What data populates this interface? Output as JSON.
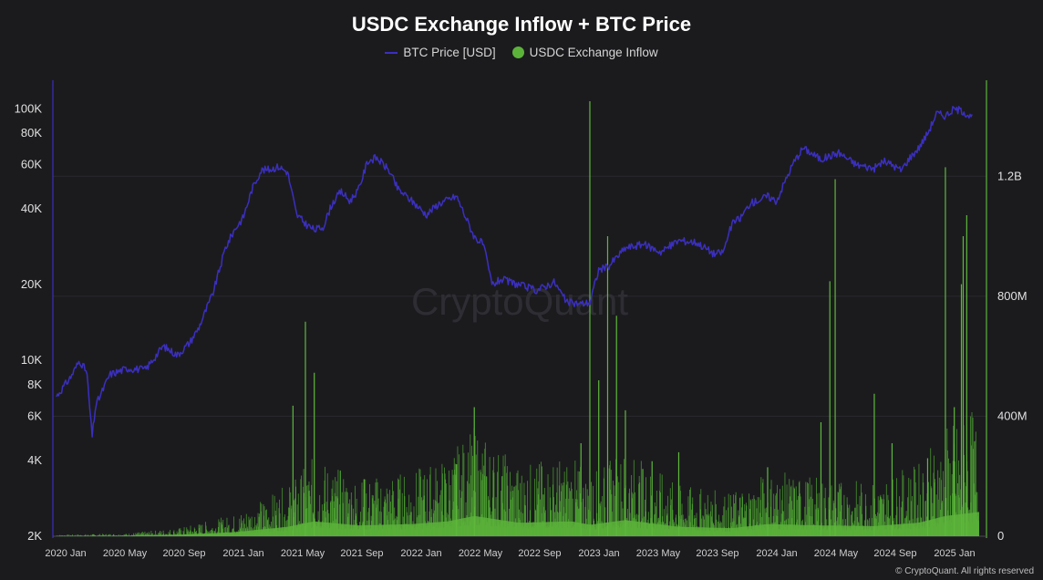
{
  "chart_data": {
    "type": "line",
    "title": "USDC Exchange Inflow + BTC Price",
    "watermark": "CryptoQuant",
    "copyright": "© CryptoQuant. All rights reserved",
    "legend": [
      {
        "name": "BTC Price [USD]",
        "color": "#3b2fbf",
        "marker": "line"
      },
      {
        "name": "USDC Exchange Inflow",
        "color": "#5cb33a",
        "marker": "dot"
      }
    ],
    "x_ticks": [
      "2020 Jan",
      "2020 May",
      "2020 Sep",
      "2021 Jan",
      "2021 May",
      "2021 Sep",
      "2022 Jan",
      "2022 May",
      "2022 Sep",
      "2023 Jan",
      "2023 May",
      "2023 Sep",
      "2024 Jan",
      "2024 May",
      "2024 Sep",
      "2025 Jan"
    ],
    "left_axis": {
      "label": "BTC Price",
      "scale": "log",
      "range": [
        2000,
        130000
      ],
      "ticks": [
        {
          "v": 2000,
          "t": "2K"
        },
        {
          "v": 4000,
          "t": "4K"
        },
        {
          "v": 6000,
          "t": "6K"
        },
        {
          "v": 8000,
          "t": "8K"
        },
        {
          "v": 10000,
          "t": "10K"
        },
        {
          "v": 20000,
          "t": "20K"
        },
        {
          "v": 40000,
          "t": "40K"
        },
        {
          "v": 60000,
          "t": "60K"
        },
        {
          "v": 80000,
          "t": "80K"
        },
        {
          "v": 100000,
          "t": "100K"
        }
      ]
    },
    "right_axis": {
      "label": "USDC Exchange Inflow",
      "scale": "linear",
      "range": [
        0,
        1520000000
      ],
      "ticks": [
        {
          "v": 0,
          "t": "0"
        },
        {
          "v": 400000000,
          "t": "400M"
        },
        {
          "v": 800000000,
          "t": "800M"
        },
        {
          "v": 1200000000,
          "t": "1.2B"
        }
      ]
    },
    "x_range": [
      2020.0,
      2025.19
    ],
    "btc_series": {
      "name": "BTC Price [USD]",
      "x": [
        2020.0,
        2020.08,
        2020.13,
        2020.17,
        2020.2,
        2020.22,
        2020.3,
        2020.4,
        2020.5,
        2020.6,
        2020.68,
        2020.75,
        2020.8,
        2020.88,
        2020.95,
        2021.0,
        2021.05,
        2021.1,
        2021.15,
        2021.2,
        2021.25,
        2021.3,
        2021.35,
        2021.4,
        2021.45,
        2021.5,
        2021.55,
        2021.6,
        2021.65,
        2021.7,
        2021.75,
        2021.8,
        2021.87,
        2021.92,
        2022.0,
        2022.08,
        2022.15,
        2022.25,
        2022.35,
        2022.4,
        2022.45,
        2022.5,
        2022.6,
        2022.7,
        2022.8,
        2022.87,
        2022.95,
        2023.0,
        2023.05,
        2023.1,
        2023.2,
        2023.3,
        2023.4,
        2023.5,
        2023.6,
        2023.7,
        2023.75,
        2023.8,
        2023.85,
        2023.9,
        2024.0,
        2024.05,
        2024.1,
        2024.15,
        2024.2,
        2024.3,
        2024.4,
        2024.5,
        2024.6,
        2024.65,
        2024.7,
        2024.75,
        2024.8,
        2024.85,
        2024.9,
        2024.95,
        2025.0,
        2025.05,
        2025.1,
        2025.15
      ],
      "values": [
        7200,
        8600,
        10000,
        9000,
        5000,
        6600,
        8800,
        9300,
        9200,
        11400,
        10500,
        11800,
        13500,
        18500,
        28000,
        33000,
        37000,
        48000,
        57000,
        57500,
        59000,
        56000,
        38000,
        35000,
        33000,
        34000,
        42000,
        47000,
        43000,
        48000,
        62000,
        64000,
        57000,
        48000,
        43000,
        38000,
        42000,
        45000,
        31000,
        29000,
        20000,
        21000,
        20000,
        19000,
        20500,
        17000,
        16800,
        17000,
        23000,
        23500,
        28000,
        29000,
        27000,
        30000,
        29500,
        26500,
        27000,
        35000,
        37000,
        42000,
        45000,
        43000,
        52000,
        62000,
        70000,
        63000,
        67000,
        60000,
        58000,
        62000,
        60000,
        57000,
        64000,
        70000,
        80000,
        96000,
        94000,
        100000,
        98000,
        92000
      ]
    },
    "inflow_series": {
      "name": "USDC Exchange Inflow",
      "baseline": [
        [
          2020.0,
          2000000
        ],
        [
          2020.4,
          4000000
        ],
        [
          2020.7,
          12000000
        ],
        [
          2021.0,
          30000000
        ],
        [
          2021.3,
          70000000
        ],
        [
          2021.45,
          110000000
        ],
        [
          2021.7,
          80000000
        ],
        [
          2022.0,
          90000000
        ],
        [
          2022.2,
          110000000
        ],
        [
          2022.35,
          150000000
        ],
        [
          2022.6,
          100000000
        ],
        [
          2022.9,
          110000000
        ],
        [
          2023.0,
          85000000
        ],
        [
          2023.2,
          120000000
        ],
        [
          2023.5,
          70000000
        ],
        [
          2023.8,
          60000000
        ],
        [
          2024.0,
          90000000
        ],
        [
          2024.3,
          80000000
        ],
        [
          2024.6,
          75000000
        ],
        [
          2024.85,
          100000000
        ],
        [
          2025.0,
          150000000
        ],
        [
          2025.19,
          180000000
        ]
      ],
      "spikes": [
        [
          2021.33,
          435000000
        ],
        [
          2021.4,
          715000000
        ],
        [
          2021.45,
          545000000
        ],
        [
          2021.73,
          190000000
        ],
        [
          2022.25,
          240000000
        ],
        [
          2022.35,
          430000000
        ],
        [
          2022.95,
          310000000
        ],
        [
          2023.0,
          1450000000
        ],
        [
          2023.05,
          520000000
        ],
        [
          2023.1,
          1000000000
        ],
        [
          2023.15,
          735000000
        ],
        [
          2023.2,
          420000000
        ],
        [
          2023.35,
          250000000
        ],
        [
          2023.5,
          280000000
        ],
        [
          2024.0,
          230000000
        ],
        [
          2024.3,
          380000000
        ],
        [
          2024.35,
          850000000
        ],
        [
          2024.38,
          1190000000
        ],
        [
          2024.6,
          475000000
        ],
        [
          2024.7,
          310000000
        ],
        [
          2024.9,
          260000000
        ],
        [
          2025.0,
          1230000000
        ],
        [
          2025.05,
          430000000
        ],
        [
          2025.09,
          840000000
        ],
        [
          2025.1,
          1000000000
        ],
        [
          2025.12,
          1070000000
        ]
      ]
    }
  }
}
